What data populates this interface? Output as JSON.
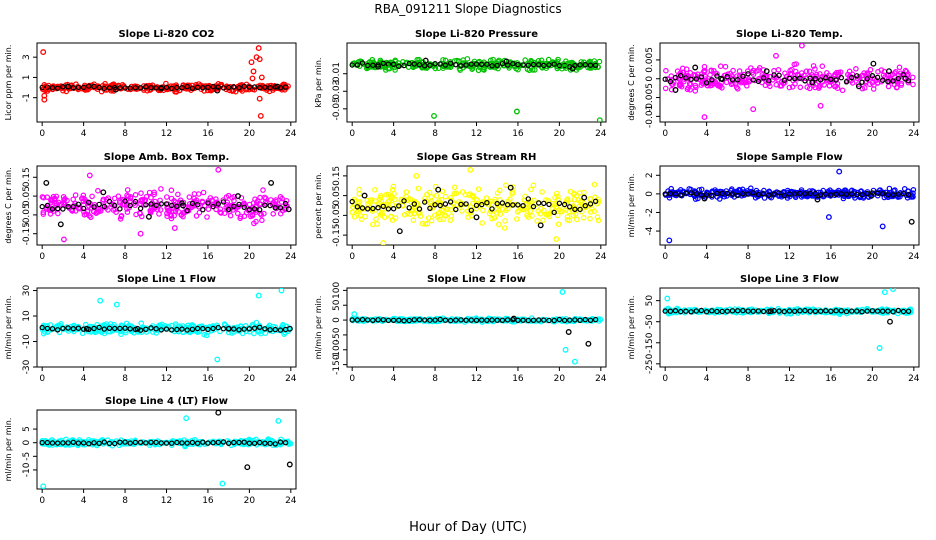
{
  "chart_data": {
    "type": "scatter",
    "title": "RBA_091211  Slope Diagnostics",
    "xlabel": "Hour of Day (UTC)",
    "x_ticks": [
      0,
      4,
      8,
      12,
      16,
      20,
      24
    ],
    "xlim": [
      -0.5,
      24.5
    ],
    "panels": [
      {
        "title": "Slope Li-820 CO2",
        "ylabel": "Licor ppm per min.",
        "color": "#ff0000",
        "ylim": [
          -3.4,
          4.4
        ],
        "yticks": [
          -1,
          1,
          3
        ],
        "series": [
          {
            "name": "all",
            "color": "#ff0000",
            "x": [
              0.1,
              0.2,
              0.2,
              0.3,
              20.2,
              20.4,
              20.7,
              20.9,
              21.0,
              21.2,
              21.0,
              21.1,
              20.3
            ],
            "y": [
              3.5,
              -1.2,
              -0.8,
              0.1,
              2.5,
              1.6,
              3.0,
              3.9,
              2.8,
              1.0,
              -1.1,
              -2.8,
              0.9
            ]
          },
          {
            "name": "hourly",
            "color": "#000000",
            "x": [
              2.5,
              7.1,
              11.5,
              16.9,
              22.7
            ],
            "y": [
              0.1,
              -0.2,
              -0.1,
              -0.3,
              0.1
            ]
          }
        ]
      },
      {
        "title": "Slope Li-820 Pressure",
        "ylabel": "kPa per min.",
        "color": "#00c000",
        "ylim": [
          -0.065,
          0.025
        ],
        "yticks": [
          -0.05,
          -0.03,
          -0.01
        ],
        "series": [
          {
            "name": "all",
            "color": "#00c000",
            "x": [
              7.9,
              15.9,
              23.9,
              3.6,
              12.2,
              20.5
            ],
            "y": [
              -0.058,
              -0.053,
              -0.063,
              -0.004,
              -0.006,
              -0.002
            ]
          },
          {
            "name": "hourly",
            "color": "#000000",
            "x": [
              2.5,
              7.1,
              14.9,
              21.3
            ],
            "y": [
              -0.002,
              0.005,
              0.004,
              -0.004
            ]
          }
        ]
      },
      {
        "title": "Slope Li-820 Temp.",
        "ylabel": "degrees C per min.",
        "color": "#ff00ff",
        "ylim": [
          -0.0115,
          0.0095
        ],
        "yticks": [
          -0.01,
          -0.005,
          0.0,
          0.005
        ],
        "series": [
          {
            "name": "all",
            "color": "#ff00ff",
            "x": [
              13.2,
              3.8,
              8.5,
              15.0,
              10.7
            ],
            "y": [
              0.0088,
              -0.0102,
              -0.0081,
              -0.0072,
              0.0061
            ]
          },
          {
            "name": "hourly",
            "color": "#000000",
            "x": [
              1.0,
              2.9,
              5.4,
              9.8,
              14.2,
              18.7,
              20.1,
              21.6,
              23.2
            ],
            "y": [
              -0.003,
              0.003,
              0.0,
              0.002,
              -0.001,
              -0.002,
              0.004,
              0.002,
              0.0
            ]
          }
        ]
      },
      {
        "title": "Slope Amb. Box Temp.",
        "ylabel": "degrees C per min.",
        "color": "#ff00ff",
        "ylim": [
          -0.21,
          0.21
        ],
        "yticks": [
          -0.15,
          -0.05,
          0.05,
          0.15
        ],
        "series": [
          {
            "name": "all",
            "color": "#ff00ff",
            "x": [
              2.1,
              17.0,
              9.5,
              4.6,
              12.8
            ],
            "y": [
              -0.18,
              0.19,
              -0.15,
              0.16,
              -0.12
            ]
          },
          {
            "name": "hourly",
            "color": "#000000",
            "x": [
              0.4,
              1.8,
              5.9,
              10.3,
              13.6,
              18.9,
              22.1,
              23.8
            ],
            "y": [
              0.12,
              -0.1,
              0.07,
              -0.06,
              0.0,
              0.05,
              0.12,
              -0.02
            ]
          }
        ]
      },
      {
        "title": "Slope Gas Stream RH",
        "ylabel": "percent per min.",
        "color": "#ffff00",
        "ylim": [
          -0.2,
          0.2
        ],
        "yticks": [
          -0.15,
          -0.05,
          0.05,
          0.15
        ],
        "series": [
          {
            "name": "all",
            "color": "#ffff00",
            "x": [
              3.0,
              11.4,
              19.7,
              6.2
            ],
            "y": [
              -0.19,
              0.18,
              -0.17,
              0.15
            ]
          },
          {
            "name": "hourly",
            "color": "#000000",
            "x": [
              1.2,
              4.6,
              8.3,
              12.0,
              15.3,
              18.2,
              22.4
            ],
            "y": [
              0.05,
              -0.13,
              0.08,
              -0.06,
              0.09,
              -0.1,
              0.04
            ]
          }
        ]
      },
      {
        "title": "Slope Sample Flow",
        "ylabel": "ml/min per min.",
        "color": "#0000ff",
        "ylim": [
          -5.5,
          3.0
        ],
        "yticks": [
          -4,
          -2,
          0,
          2
        ],
        "series": [
          {
            "name": "all",
            "color": "#0000ff",
            "x": [
              0.4,
              15.8,
              21.0,
              16.8
            ],
            "y": [
              -5.0,
              -2.5,
              -3.5,
              2.4
            ]
          },
          {
            "name": "hourly",
            "color": "#000000",
            "x": [
              3.8,
              14.7,
              19.9,
              23.8
            ],
            "y": [
              -0.5,
              -0.6,
              -0.2,
              -3.0
            ]
          }
        ]
      },
      {
        "title": "Slope Line 1 Flow",
        "ylabel": "ml/min per min.",
        "color": "#00ffff",
        "ylim": [
          -30,
          32
        ],
        "yticks": [
          -30,
          -10,
          10,
          30
        ],
        "series": [
          {
            "name": "all",
            "color": "#00ffff",
            "x": [
              5.6,
              7.2,
              16.9,
              20.9,
              23.1
            ],
            "y": [
              22.0,
              19.0,
              -24.0,
              26.0,
              30.0
            ]
          },
          {
            "name": "hourly",
            "color": "#000000",
            "x": [
              4.3,
              9.2,
              18.0,
              23.9
            ],
            "y": [
              0.0,
              0.0,
              0.0,
              0.0
            ]
          }
        ]
      },
      {
        "title": "Slope Line 2 Flow",
        "ylabel": "ml/min per min.",
        "color": "#00ffff",
        "ylim": [
          -158,
          108
        ],
        "yticks": [
          -150,
          -100,
          -50,
          0,
          50,
          100
        ],
        "series": [
          {
            "name": "all",
            "color": "#00ffff",
            "x": [
              0.2,
              20.3,
              20.6,
              21.5
            ],
            "y": [
              20.0,
              95.0,
              -100.0,
              -140.0
            ]
          },
          {
            "name": "hourly",
            "color": "#000000",
            "x": [
              15.6,
              20.9,
              22.8
            ],
            "y": [
              5.0,
              -40.0,
              -80.0
            ]
          }
        ]
      },
      {
        "title": "Slope Line 3 Flow",
        "ylabel": "ml/min per min.",
        "color": "#00ffff",
        "ylim": [
          -265,
          110
        ],
        "yticks": [
          -250,
          -150,
          -50,
          50
        ],
        "series": [
          {
            "name": "all",
            "color": "#00ffff",
            "x": [
              0.2,
              20.7,
              21.2,
              22.0
            ],
            "y": [
              60.0,
              -175.0,
              90.0,
              105.0
            ]
          },
          {
            "name": "hourly",
            "color": "#000000",
            "x": [
              21.7,
              10.2
            ],
            "y": [
              -50.0,
              0.0
            ]
          }
        ]
      },
      {
        "title": "Slope Line 4 (LT) Flow",
        "ylabel": "ml/min per min.",
        "color": "#00ffff",
        "ylim": [
          -17,
          12
        ],
        "yticks": [
          -10,
          -5,
          0,
          5
        ],
        "series": [
          {
            "name": "all",
            "color": "#00ffff",
            "x": [
              0.1,
              17.4,
              22.8,
              13.9
            ],
            "y": [
              -16.0,
              -15.0,
              8.0,
              9.0
            ]
          },
          {
            "name": "hourly",
            "color": "#000000",
            "x": [
              17.0,
              19.8,
              23.9
            ],
            "y": [
              11.0,
              -9.0,
              -8.0
            ]
          }
        ]
      }
    ]
  }
}
